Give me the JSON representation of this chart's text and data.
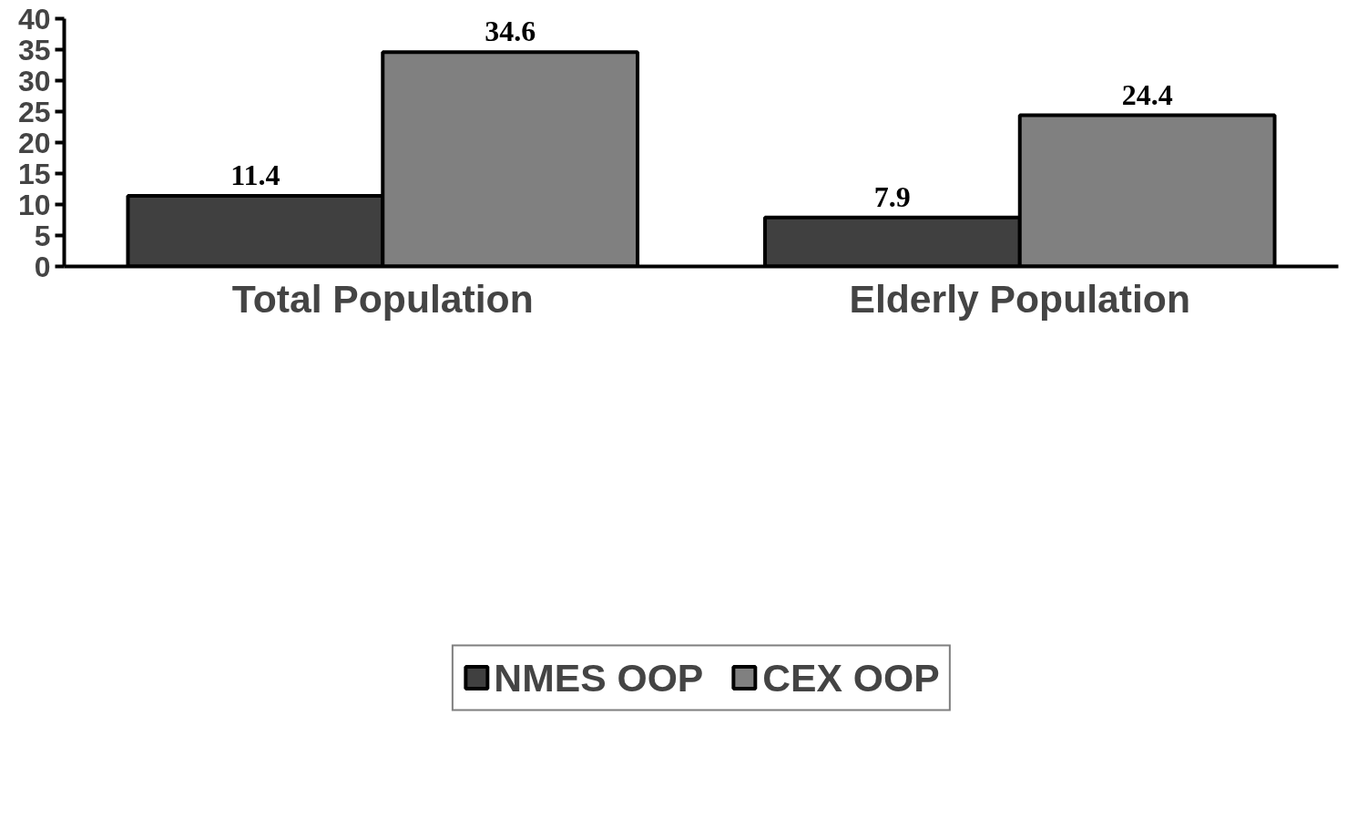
{
  "chart_data": {
    "type": "bar",
    "categories": [
      "Total Population",
      "Elderly Population"
    ],
    "series": [
      {
        "name": "NMES OOP",
        "color": "#404040",
        "values": [
          11.4,
          7.9
        ]
      },
      {
        "name": "CEX OOP",
        "color": "#808080",
        "values": [
          34.6,
          24.4
        ]
      }
    ],
    "ylim": [
      0,
      40
    ],
    "yticks": [
      0,
      5,
      10,
      15,
      20,
      25,
      30,
      35,
      40
    ],
    "data_labels": true,
    "grid": false,
    "legend": "bottom"
  }
}
